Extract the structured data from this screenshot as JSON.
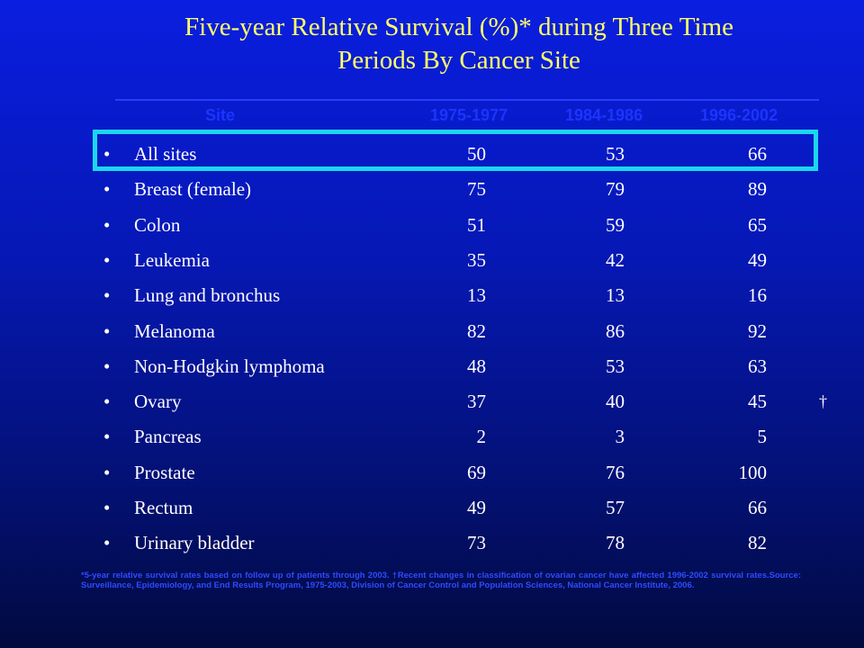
{
  "title": "Five-year Relative Survival (%)* during Three Time Periods By Cancer Site",
  "table": {
    "headers": {
      "site": "Site",
      "period1": "1975-1977",
      "period2": "1984-1986",
      "period3": "1996-2002"
    },
    "rows": [
      {
        "bullet": "•",
        "site": "All sites",
        "p1": "50",
        "p2": "53",
        "p3": "66",
        "mark": ""
      },
      {
        "bullet": "•",
        "site": "Breast (female)",
        "p1": "75",
        "p2": "79",
        "p3": "89",
        "mark": ""
      },
      {
        "bullet": "•",
        "site": "Colon",
        "p1": "51",
        "p2": "59",
        "p3": "65",
        "mark": ""
      },
      {
        "bullet": "•",
        "site": "Leukemia",
        "p1": "35",
        "p2": "42",
        "p3": "49",
        "mark": ""
      },
      {
        "bullet": "•",
        "site": "Lung and bronchus",
        "p1": "13",
        "p2": "13",
        "p3": "16",
        "mark": ""
      },
      {
        "bullet": "•",
        "site": "Melanoma",
        "p1": "82",
        "p2": "86",
        "p3": "92",
        "mark": ""
      },
      {
        "bullet": "•",
        "site": "Non-Hodgkin lymphoma",
        "p1": "48",
        "p2": "53",
        "p3": "63",
        "mark": ""
      },
      {
        "bullet": "•",
        "site": "Ovary",
        "p1": "37",
        "p2": "40",
        "p3": "45",
        "mark": "†"
      },
      {
        "bullet": "•",
        "site": "Pancreas",
        "p1": "2",
        "p2": "3",
        "p3": "5",
        "mark": ""
      },
      {
        "bullet": "•",
        "site": "Prostate",
        "p1": "69",
        "p2": "76",
        "p3": "100",
        "mark": ""
      },
      {
        "bullet": "•",
        "site": "Rectum",
        "p1": "49",
        "p2": "57",
        "p3": "66",
        "mark": ""
      },
      {
        "bullet": "•",
        "site": "Urinary bladder",
        "p1": "73",
        "p2": "78",
        "p3": "82",
        "mark": ""
      }
    ]
  },
  "footnote": "*5-year relative survival rates based on follow up of patients through 2003. †Recent changes in classification of ovarian cancer have affected 1996-2002 survival rates.Source: Surveillance, Epidemiology, and End Results Program, 1975-2003, Division of Cancer Control and Population Sciences, National Cancer Institute, 2006.",
  "colors": {
    "title": "#ffff66",
    "header": "#1c35ff",
    "highlight": "#1ad7f0",
    "text": "#ffffff"
  }
}
